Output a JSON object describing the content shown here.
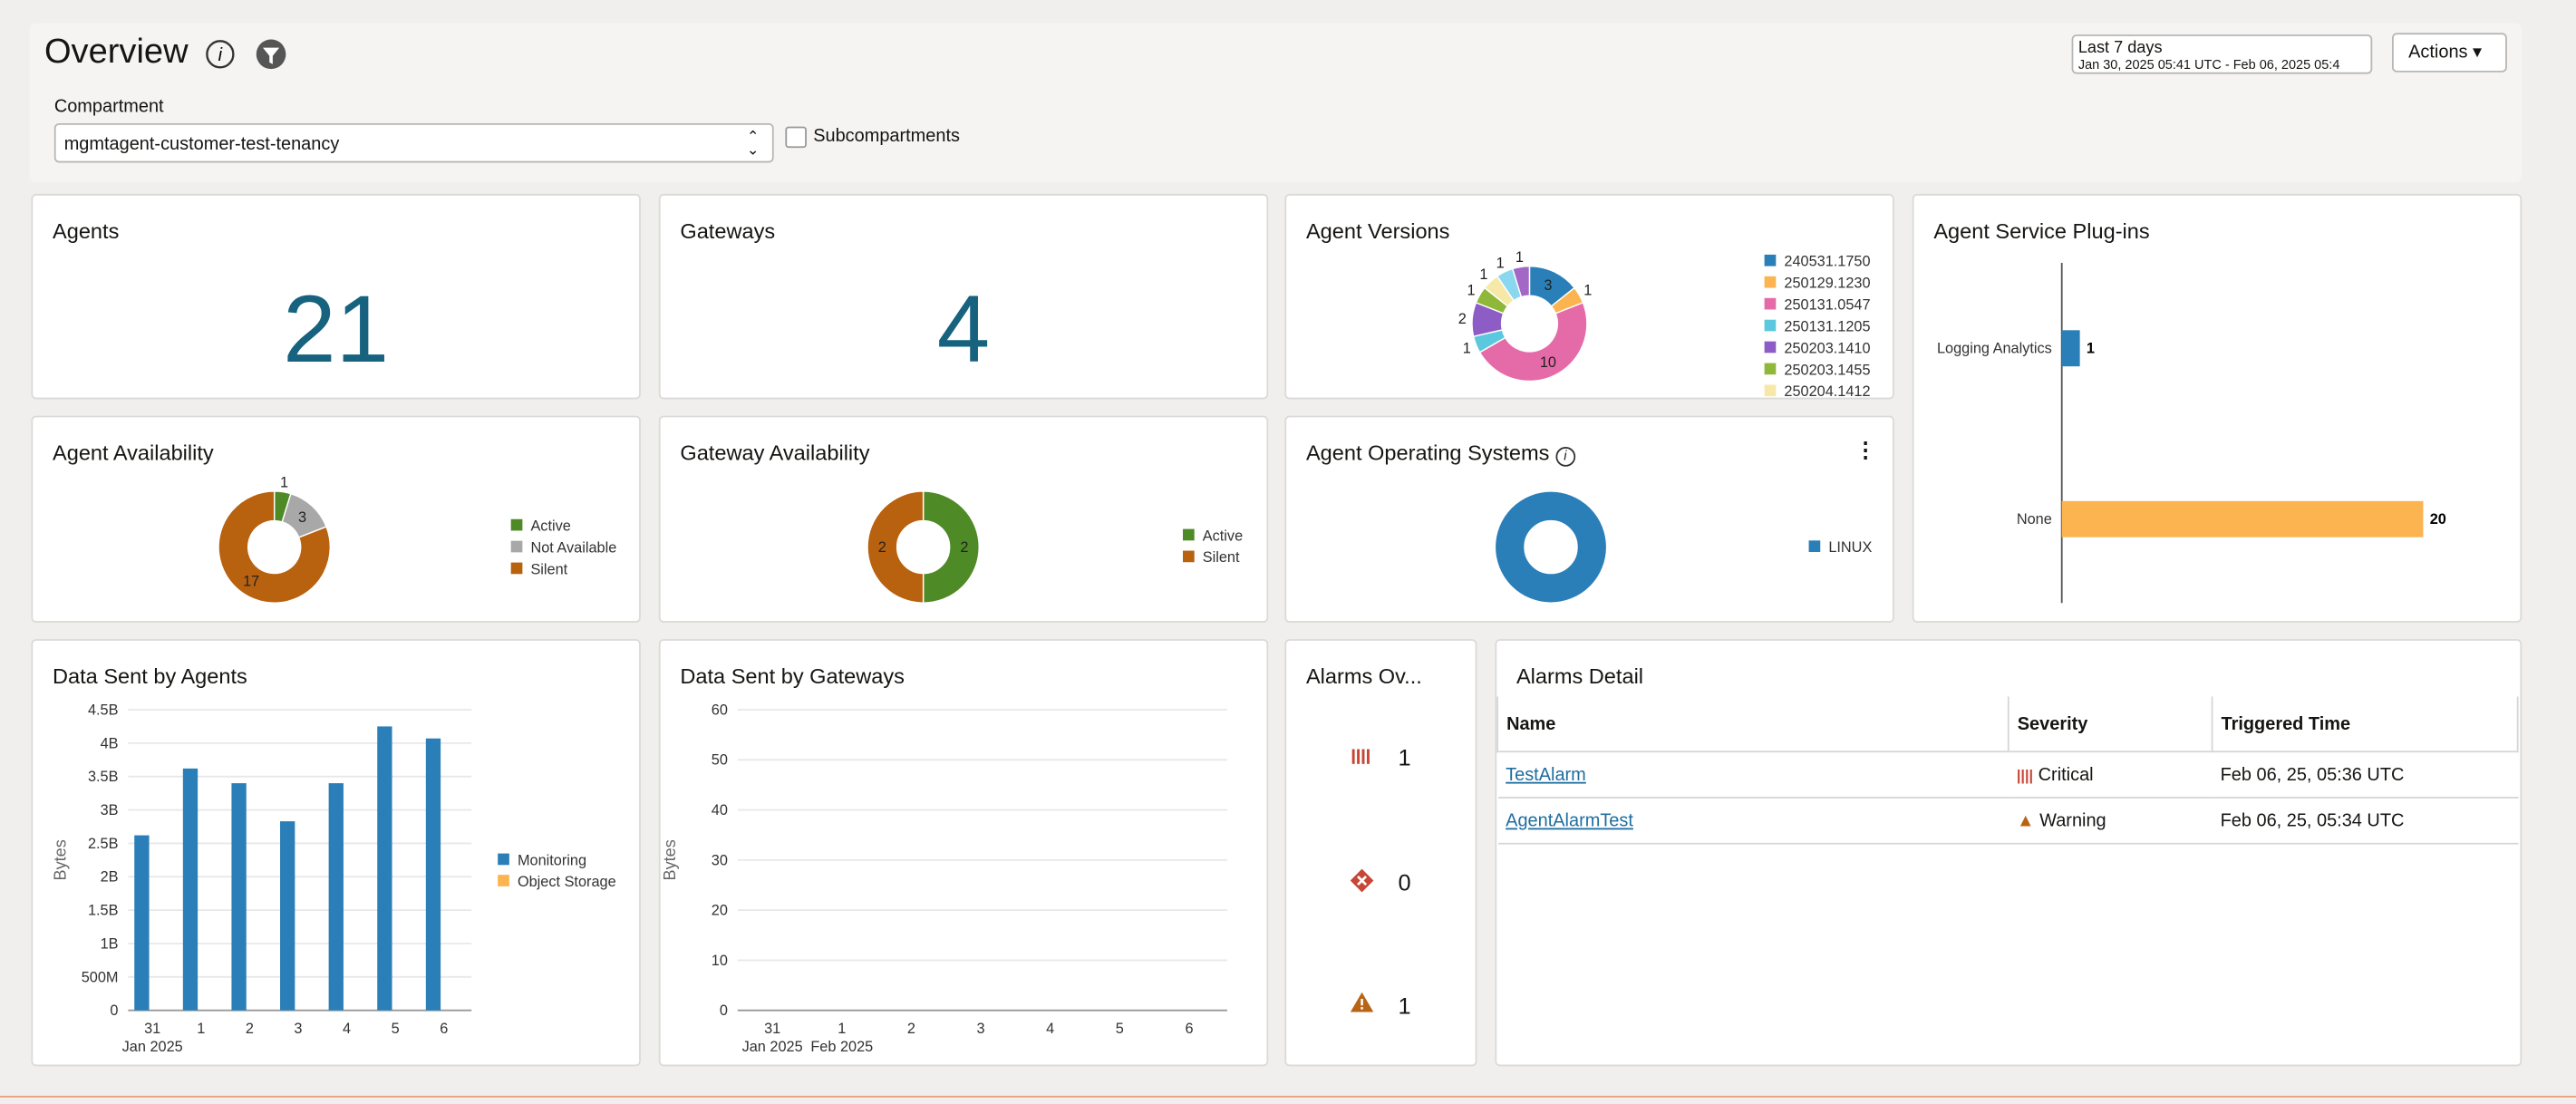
{
  "header": {
    "title": "Overview",
    "time_range": "Last 7 days",
    "time_detail": "Jan 30, 2025 05:41 UTC - Feb 06, 2025 05:4",
    "actions": "Actions"
  },
  "filter": {
    "label": "Compartment",
    "compartment": "mgmtagent-customer-test-tenancy",
    "subcompartments": "Subcompartments"
  },
  "agents": {
    "title": "Agents",
    "count": 21
  },
  "gateways": {
    "title": "Gateways",
    "count": 4
  },
  "agent_versions": {
    "title": "Agent Versions",
    "type": "pie",
    "categories": [
      "240531.1750",
      "250129.1230",
      "250131.0547",
      "250131.1205",
      "250203.1410",
      "250203.1455",
      "250204.1412",
      null,
      null
    ],
    "values": [
      3,
      1,
      10,
      1,
      2,
      1,
      1,
      1,
      1
    ],
    "colors": [
      "#2b7fb8",
      "#fbb450",
      "#e56aa8",
      "#5bc8dd",
      "#8e5cc5",
      "#8fb83a",
      "#f6e9a8",
      "#8ad7f0",
      "#a367c6"
    ],
    "show_values": true
  },
  "plugins": {
    "title": "Agent Service Plug-ins",
    "type": "hbar",
    "categories": [
      "Logging Analytics",
      "None"
    ],
    "values": [
      1,
      20
    ],
    "colors": [
      "#2b7fb8",
      "#fbb450"
    ]
  },
  "agent_availability": {
    "title": "Agent Availability",
    "type": "pie",
    "categories": [
      "Active",
      "Not Available",
      "Silent"
    ],
    "values": [
      1,
      3,
      17
    ],
    "colors": [
      "#4e8a25",
      "#a8a8a8",
      "#b8620f"
    ],
    "show_values": true
  },
  "gateway_availability": {
    "title": "Gateway Availability",
    "type": "pie",
    "categories": [
      "Active",
      "Silent"
    ],
    "values": [
      2,
      2
    ],
    "colors": [
      "#4e8a25",
      "#b8620f"
    ],
    "show_values": true
  },
  "agent_os": {
    "title": "Agent Operating Systems",
    "type": "pie",
    "categories": [
      "LINUX"
    ],
    "values": [
      21
    ],
    "colors": [
      "#2b7fb8"
    ],
    "show_values": false
  },
  "agent_data": {
    "title": "Data Sent by Agents",
    "type": "bar",
    "ylabel": "Bytes",
    "categories": [
      "31",
      "1",
      "2",
      "3",
      "4",
      "5",
      "6"
    ],
    "x_sublabels": [
      "Jan 2025",
      null,
      null,
      null,
      null,
      null,
      null
    ],
    "series": [
      {
        "name": "Monitoring",
        "color": "#2b7fb8",
        "values": [
          2620000000,
          3620000000,
          3400000000,
          2830000000,
          3400000000,
          4250000000,
          4070000000
        ]
      },
      {
        "name": "Object Storage",
        "color": "#fbb450",
        "values": [
          0,
          0,
          0,
          0,
          0,
          0,
          0
        ]
      }
    ],
    "ylim": [
      0,
      4500000000
    ],
    "yticks": [
      0,
      {
        "value": 500000000,
        "label": "500M"
      },
      {
        "value": 1000000000,
        "label": "1B"
      },
      {
        "value": 1500000000,
        "label": "1.5B"
      },
      {
        "value": 2000000000,
        "label": "2B"
      },
      {
        "value": 2500000000,
        "label": "2.5B"
      },
      {
        "value": 3000000000,
        "label": "3B"
      },
      {
        "value": 3500000000,
        "label": "3.5B"
      },
      {
        "value": 4000000000,
        "label": "4B"
      },
      {
        "value": 4500000000,
        "label": "4.5B"
      }
    ],
    "grid": true
  },
  "gateway_data": {
    "title": "Data Sent by Gateways",
    "type": "bar",
    "ylabel": "Bytes",
    "categories": [
      "31",
      "1",
      "2",
      "3",
      "4",
      "5",
      "6"
    ],
    "x_sublabels": [
      "Jan 2025",
      "Feb 2025",
      null,
      null,
      null,
      null,
      null
    ],
    "series": [],
    "ylim": [
      0,
      60
    ],
    "yticks": [
      0,
      10,
      20,
      30,
      40,
      50,
      60
    ],
    "grid": true
  },
  "alarms_overview": {
    "title": "Alarms Ov...",
    "critical": 1,
    "error": 0,
    "warning": 1
  },
  "alarms_detail": {
    "title": "Alarms Detail",
    "columns": [
      "Name",
      "Severity",
      "Triggered Time"
    ],
    "rows": [
      [
        "TestAlarm",
        "Critical",
        "Feb 06, 25, 05:36 UTC"
      ],
      [
        "AgentAlarmTest",
        "Warning",
        "Feb 06, 25, 05:34 UTC"
      ]
    ]
  }
}
